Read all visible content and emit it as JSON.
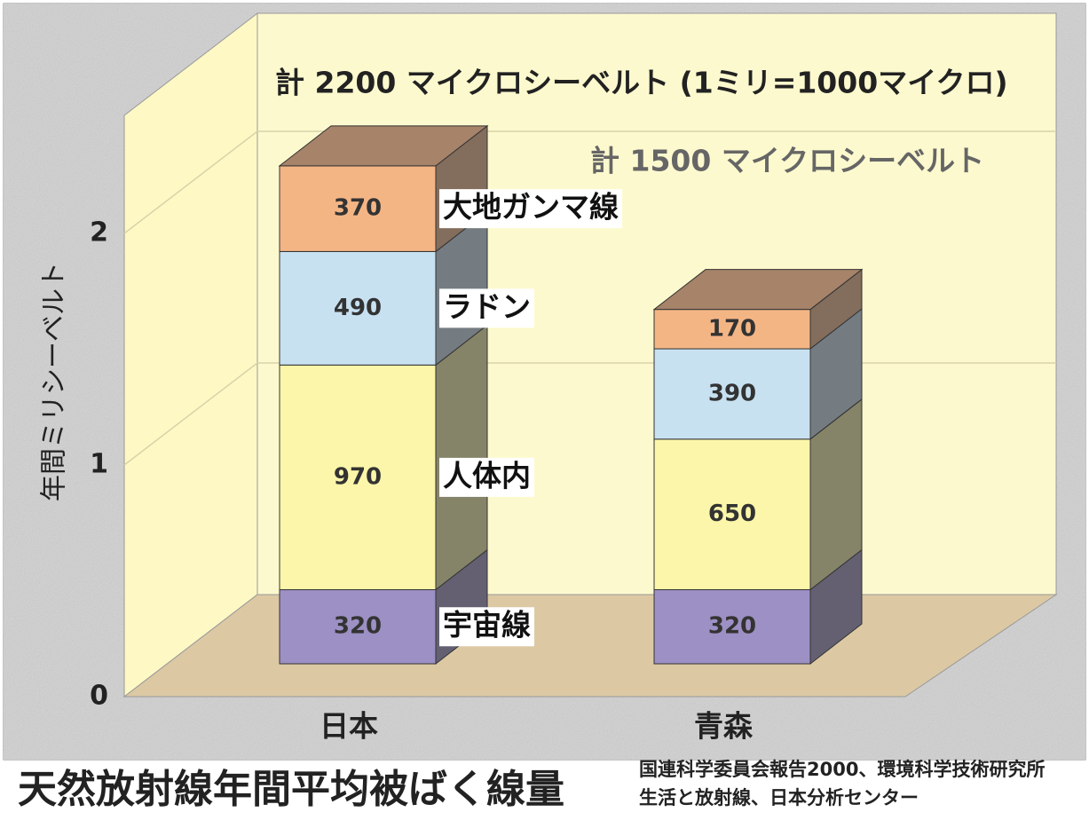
{
  "chart_data": {
    "type": "bar3d-stacked",
    "title": "天然放射線年間平均被ばく線量",
    "source": [
      "国連科学委員会報告2000、環境科学技術研究所",
      "生活と放射線、日本分析センター"
    ],
    "ylabel": "年間ミリシーベルト",
    "annotations": [
      "計 2200 マイクロシーベルト (1ミリ=1000マイクロ)",
      "計 1500 マイクロシーベルト"
    ],
    "categories": [
      "日本",
      "青森"
    ],
    "ylim": [
      0,
      2.5
    ],
    "yticks": [
      0,
      1,
      2
    ],
    "grid": true,
    "series": [
      {
        "name": "宇宙線",
        "color": "#9d90c4",
        "values": [
          0.32,
          0.32
        ],
        "value_labels": [
          "320",
          "320"
        ]
      },
      {
        "name": "人体内",
        "color": "#fbf6a9",
        "values": [
          0.97,
          0.65
        ],
        "value_labels": [
          "970",
          "650"
        ]
      },
      {
        "name": "ラドン",
        "color": "#c8e1f1",
        "values": [
          0.49,
          0.39
        ],
        "value_labels": [
          "490",
          "390"
        ]
      },
      {
        "name": "大地ガンマ線",
        "color": "#f4b585",
        "values": [
          0.37,
          0.17
        ],
        "value_labels": [
          "370",
          "170"
        ]
      }
    ]
  }
}
